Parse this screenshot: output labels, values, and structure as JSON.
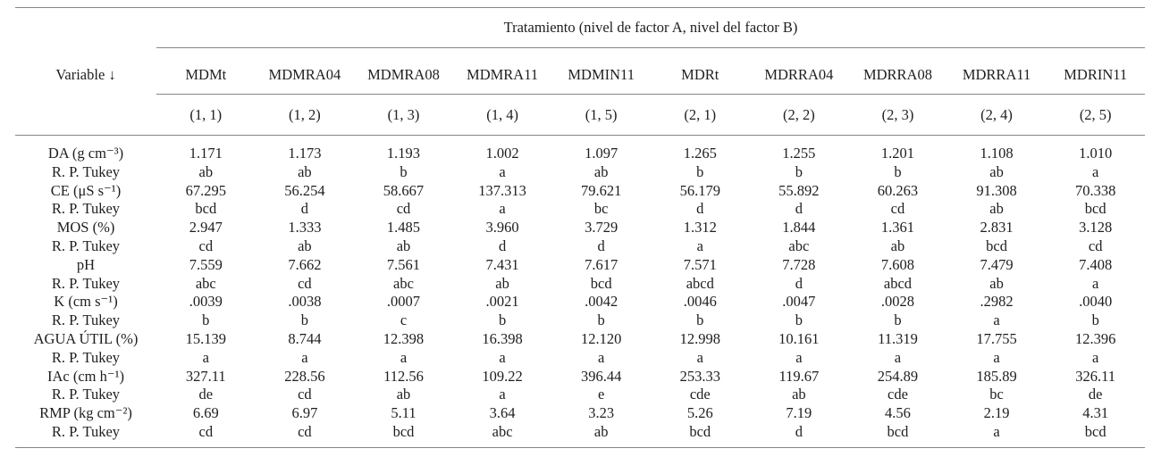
{
  "page": {
    "background_color": "#ffffff",
    "text_color": "#1e1e1e",
    "rule_color": "#868686"
  },
  "table": {
    "spanner_header": "Tratamiento (nivel de factor A, nivel del factor B)",
    "variable_header": "Variable ↓",
    "columns": [
      {
        "name": "MDMt",
        "level": "(1, 1)"
      },
      {
        "name": "MDMRA04",
        "level": "(1, 2)"
      },
      {
        "name": "MDMRA08",
        "level": "(1, 3)"
      },
      {
        "name": "MDMRA11",
        "level": "(1, 4)"
      },
      {
        "name": "MDMIN11",
        "level": "(1, 5)"
      },
      {
        "name": "MDRt",
        "level": "(2, 1)"
      },
      {
        "name": "MDRRA04",
        "level": "(2, 2)"
      },
      {
        "name": "MDRRA08",
        "level": "(2, 3)"
      },
      {
        "name": "MDRRA11",
        "level": "(2, 4)"
      },
      {
        "name": "MDRIN11",
        "level": "(2, 5)"
      }
    ],
    "rows": [
      {
        "label": "DA (g cm⁻³)",
        "values": [
          "1.171",
          "1.173",
          "1.193",
          "1.002",
          "1.097",
          "1.265",
          "1.255",
          "1.201",
          "1.108",
          "1.010"
        ]
      },
      {
        "label": "R. P. Tukey",
        "values": [
          "ab",
          "ab",
          "b",
          "a",
          "ab",
          "b",
          "b",
          "b",
          "ab",
          "a"
        ]
      },
      {
        "label": "CE (μS s⁻¹)",
        "values": [
          "67.295",
          "56.254",
          "58.667",
          "137.313",
          "79.621",
          "56.179",
          "55.892",
          "60.263",
          "91.308",
          "70.338"
        ]
      },
      {
        "label": "R. P. Tukey",
        "values": [
          "bcd",
          "d",
          "cd",
          "a",
          "bc",
          "d",
          "d",
          "cd",
          "ab",
          "bcd"
        ]
      },
      {
        "label": "MOS (%)",
        "values": [
          "2.947",
          "1.333",
          "1.485",
          "3.960",
          "3.729",
          "1.312",
          "1.844",
          "1.361",
          "2.831",
          "3.128"
        ]
      },
      {
        "label": "R. P. Tukey",
        "values": [
          "cd",
          "ab",
          "ab",
          "d",
          "d",
          "a",
          "abc",
          "ab",
          "bcd",
          "cd"
        ]
      },
      {
        "label": "pH",
        "values": [
          "7.559",
          "7.662",
          "7.561",
          "7.431",
          "7.617",
          "7.571",
          "7.728",
          "7.608",
          "7.479",
          "7.408"
        ]
      },
      {
        "label": "R. P. Tukey",
        "values": [
          "abc",
          "cd",
          "abc",
          "ab",
          "bcd",
          "abcd",
          "d",
          "abcd",
          "ab",
          "a"
        ]
      },
      {
        "label": "K (cm s⁻¹)",
        "values": [
          ".0039",
          ".0038",
          ".0007",
          ".0021",
          ".0042",
          ".0046",
          ".0047",
          ".0028",
          ".2982",
          ".0040"
        ]
      },
      {
        "label": "R. P. Tukey",
        "values": [
          "b",
          "b",
          "c",
          "b",
          "b",
          "b",
          "b",
          "b",
          "a",
          "b"
        ]
      },
      {
        "label": "AGUA ÚTIL (%)",
        "values": [
          "15.139",
          "8.744",
          "12.398",
          "16.398",
          "12.120",
          "12.998",
          "10.161",
          "11.319",
          "17.755",
          "12.396"
        ]
      },
      {
        "label": "R. P. Tukey",
        "values": [
          "a",
          "a",
          "a",
          "a",
          "a",
          "a",
          "a",
          "a",
          "a",
          "a"
        ]
      },
      {
        "label": "IAc (cm h⁻¹)",
        "values": [
          "327.11",
          "228.56",
          "112.56",
          "109.22",
          "396.44",
          "253.33",
          "119.67",
          "254.89",
          "185.89",
          "326.11"
        ]
      },
      {
        "label": "R. P. Tukey",
        "values": [
          "de",
          "cd",
          "ab",
          "a",
          "e",
          "cde",
          "ab",
          "cde",
          "bc",
          "de"
        ]
      },
      {
        "label": "RMP (kg cm⁻²)",
        "values": [
          "6.69",
          "6.97",
          "5.11",
          "3.64",
          "3.23",
          "5.26",
          "7.19",
          "4.56",
          "2.19",
          "4.31"
        ]
      },
      {
        "label": "R. P. Tukey",
        "values": [
          "cd",
          "cd",
          "bcd",
          "abc",
          "ab",
          "bcd",
          "d",
          "bcd",
          "a",
          "bcd"
        ]
      }
    ]
  }
}
